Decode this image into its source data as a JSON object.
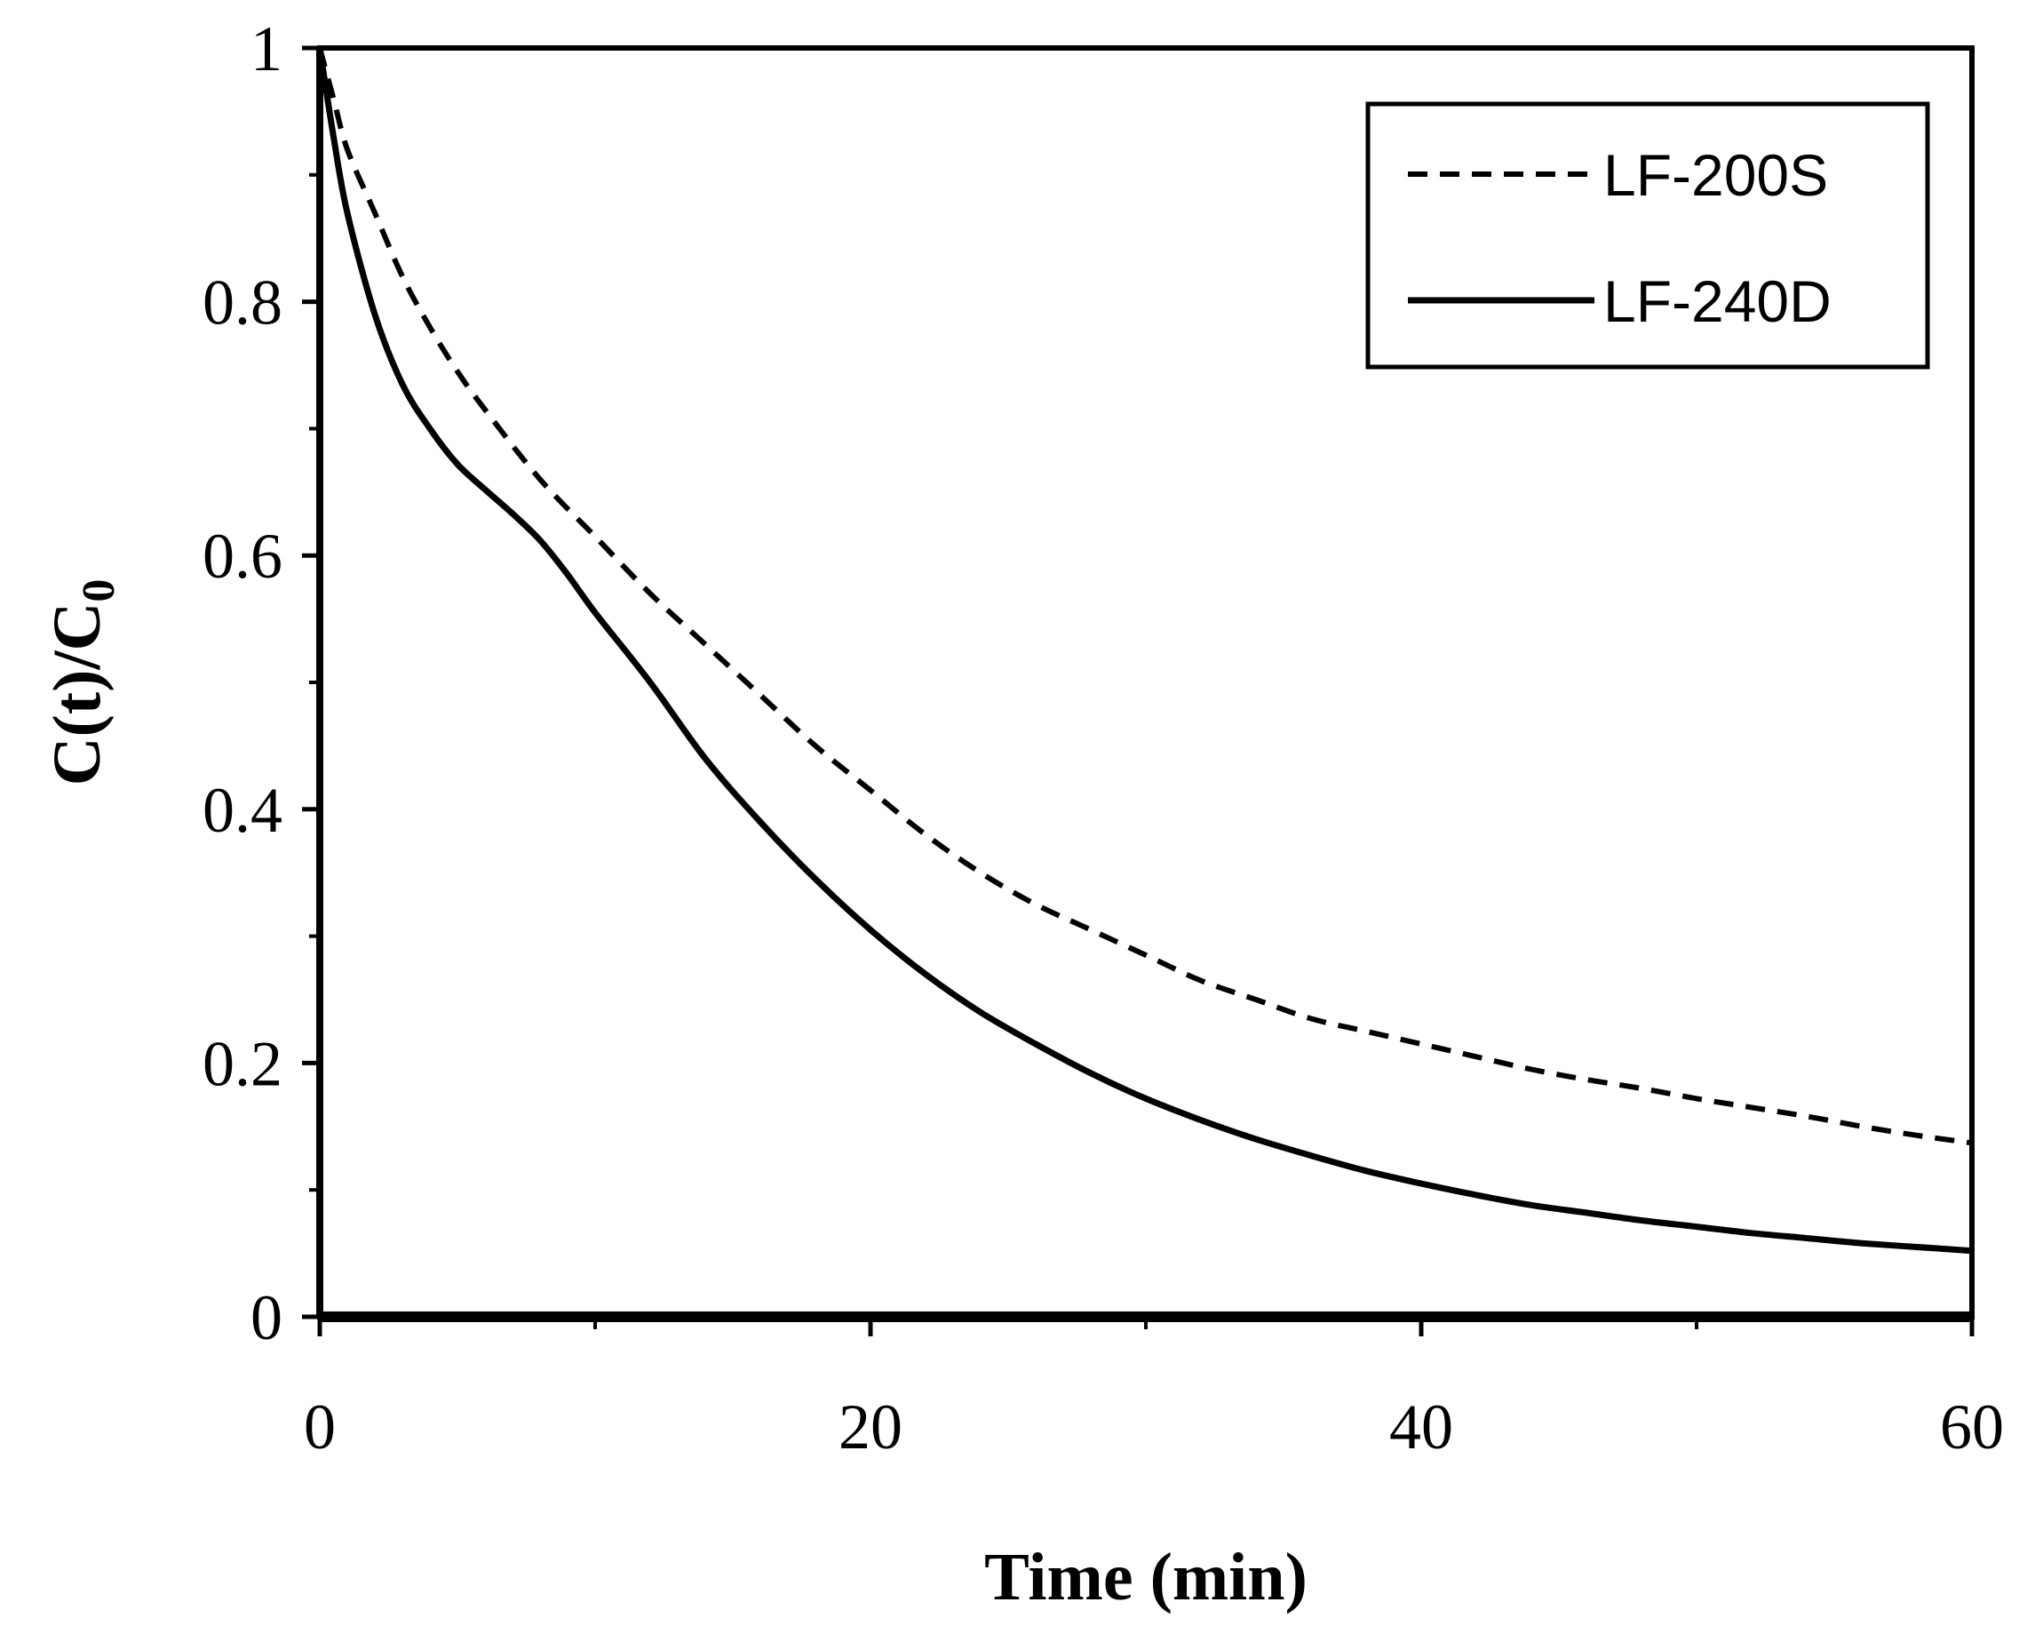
{
  "chart_data": {
    "type": "line",
    "title": "",
    "xlabel": "Time (min)",
    "ylabel_main": "C(t)/C",
    "ylabel_sub": "0",
    "xlim": [
      0,
      60
    ],
    "ylim": [
      0,
      1
    ],
    "x_ticks": [
      0,
      20,
      40,
      60
    ],
    "x_tick_labels": [
      "0",
      "20",
      "40",
      "60"
    ],
    "x_minor_ticks": [
      10,
      30,
      50
    ],
    "y_ticks": [
      0,
      0.2,
      0.4,
      0.6,
      0.8,
      1
    ],
    "y_tick_labels": [
      "0",
      "0.2",
      "0.4",
      "0.6",
      "0.8",
      "1"
    ],
    "y_minor_ticks": [
      0.1,
      0.3,
      0.5,
      0.7,
      0.9
    ],
    "grid": false,
    "legend_position": "top-right",
    "series": [
      {
        "name": "LF-200S",
        "style": "dashed",
        "color": "#000000",
        "x": [
          0,
          0.5,
          1,
          2,
          3,
          4,
          5,
          6,
          8,
          10,
          12,
          14,
          16,
          18,
          20,
          22,
          24,
          26,
          28,
          30,
          32,
          34,
          36,
          38,
          40,
          42,
          44,
          46,
          48,
          50,
          52,
          54,
          56,
          58,
          60
        ],
        "y": [
          1.0,
          0.96,
          0.92,
          0.87,
          0.82,
          0.78,
          0.745,
          0.715,
          0.66,
          0.615,
          0.57,
          0.53,
          0.49,
          0.45,
          0.415,
          0.38,
          0.35,
          0.325,
          0.305,
          0.285,
          0.265,
          0.25,
          0.235,
          0.225,
          0.215,
          0.205,
          0.195,
          0.187,
          0.18,
          0.172,
          0.165,
          0.158,
          0.15,
          0.143,
          0.137
        ]
      },
      {
        "name": "LF-240D",
        "style": "solid",
        "color": "#000000",
        "x": [
          0,
          0.5,
          1,
          2,
          3,
          4,
          5,
          6,
          7,
          8,
          9,
          10,
          12,
          14,
          16,
          18,
          20,
          22,
          24,
          26,
          28,
          30,
          32,
          34,
          36,
          38,
          40,
          42,
          44,
          46,
          48,
          50,
          52,
          54,
          56,
          58,
          60
        ],
        "y": [
          1.0,
          0.93,
          0.87,
          0.79,
          0.735,
          0.7,
          0.672,
          0.652,
          0.633,
          0.612,
          0.585,
          0.555,
          0.5,
          0.44,
          0.39,
          0.345,
          0.305,
          0.27,
          0.24,
          0.215,
          0.192,
          0.172,
          0.155,
          0.14,
          0.127,
          0.115,
          0.105,
          0.096,
          0.088,
          0.082,
          0.076,
          0.071,
          0.066,
          0.062,
          0.058,
          0.055,
          0.052
        ]
      }
    ]
  }
}
